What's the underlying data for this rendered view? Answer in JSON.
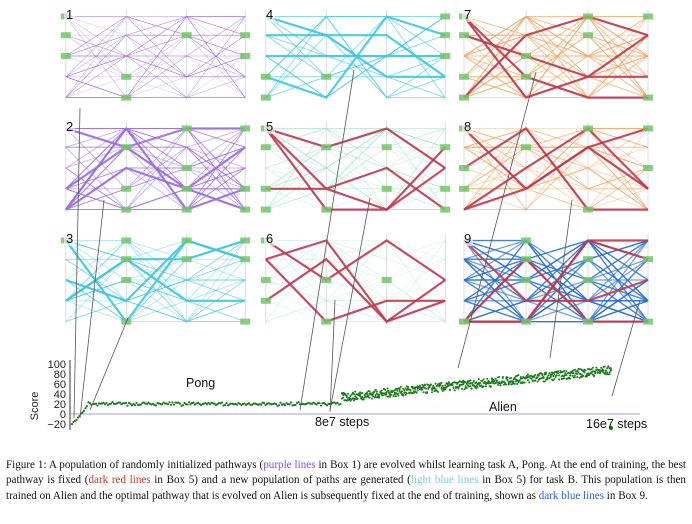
{
  "panels": [
    {
      "num": "1",
      "style": "purple_random"
    },
    {
      "num": "2",
      "style": "purple_converging"
    },
    {
      "num": "3",
      "style": "cyan_fixed"
    },
    {
      "num": "4",
      "style": "cyan_sparse"
    },
    {
      "num": "5",
      "style": "red_lightgreen"
    },
    {
      "num": "6",
      "style": "red_lightgreen_sparse"
    },
    {
      "num": "7",
      "style": "orange"
    },
    {
      "num": "8",
      "style": "orange_red"
    },
    {
      "num": "9",
      "style": "blue"
    }
  ],
  "colors": {
    "purple": "#9b6fe0",
    "cyan": "#3ec6de",
    "dark_red": "#c0394f",
    "light_green": "#9fe3c3",
    "orange": "#f2a866",
    "dark_blue": "#2a6fd1",
    "module": "#74c46a",
    "plot_green": "#1f7a1f"
  },
  "score_plot": {
    "ylabel": "Score",
    "yticks": [
      "100",
      "80",
      "60",
      "40",
      "20",
      "0",
      "−20"
    ],
    "task_a_label": "Pong",
    "task_b_label": "Alien",
    "step_labels": [
      "8e7 steps",
      "16e7 steps"
    ]
  },
  "caption": {
    "p1": "Figure 1: A population of randomly initialized pathways (",
    "purple": "purple lines",
    "p2": " in Box 1) are evolved whilst learning task A, Pong. At the end of training, the best pathway is fixed (",
    "red": "dark red lines",
    "p3": " in Box 5) and a new population of paths are generated (",
    "lightblue": "light blue lines",
    "p4": " in Box 5) for task B. This population is then trained on Alien and the optimal pathway that is evolved on Alien is subsequently fixed at the end of training, shown as ",
    "darkblue": "dark blue lines",
    "p5": " in Box 9."
  }
}
